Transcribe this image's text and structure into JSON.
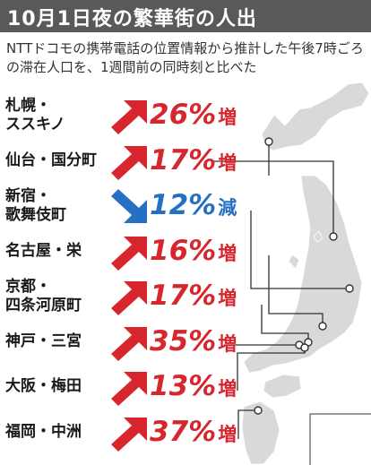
{
  "title": "10月1日夜の繁華街の人出",
  "subtitle": "NTTドコモの携帯電話の位置情報から推計した午後7時ごろの滞在人口を、1週間前の同時刻と比べた",
  "colors": {
    "increase": "#d7262e",
    "decrease": "#2670c3",
    "header": "#595959",
    "map_land": "#d9d9d9"
  },
  "rows": [
    {
      "city": "札幌・\nススキノ",
      "value": "26%",
      "unit": "増",
      "direction": "up"
    },
    {
      "city": "仙台・国分町",
      "value": "17%",
      "unit": "増",
      "direction": "up"
    },
    {
      "city": "新宿・\n歌舞伎町",
      "value": "12%",
      "unit": "減",
      "direction": "down"
    },
    {
      "city": "名古屋・栄",
      "value": "16%",
      "unit": "増",
      "direction": "up"
    },
    {
      "city": "京都・\n四条河原町",
      "value": "17%",
      "unit": "増",
      "direction": "up"
    },
    {
      "city": "神戸・三宮",
      "value": "35%",
      "unit": "増",
      "direction": "up"
    },
    {
      "city": "大阪・梅田",
      "value": "13%",
      "unit": "増",
      "direction": "up"
    },
    {
      "city": "福岡・中洲",
      "value": "37%",
      "unit": "増",
      "direction": "up"
    }
  ]
}
